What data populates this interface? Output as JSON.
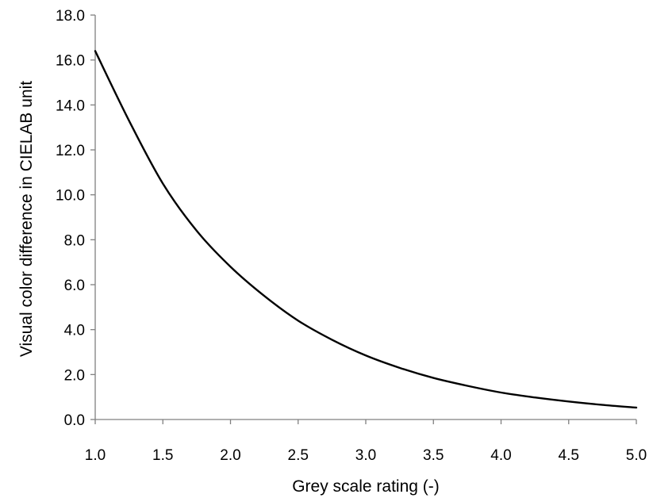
{
  "chart_data": {
    "type": "line",
    "title": "",
    "xlabel": "Grey scale rating (-)",
    "ylabel": "Visual color difference in CIELAB unit",
    "xlim": [
      1.0,
      5.0
    ],
    "ylim": [
      0.0,
      18.0
    ],
    "x_ticks": [
      "1.0",
      "1.5",
      "2.0",
      "2.5",
      "3.0",
      "3.5",
      "4.0",
      "4.5",
      "5.0"
    ],
    "y_ticks": [
      "0.0",
      "2.0",
      "4.0",
      "6.0",
      "8.0",
      "10.0",
      "12.0",
      "14.0",
      "16.0",
      "18.0"
    ],
    "x_tick_values": [
      1.0,
      1.5,
      2.0,
      2.5,
      3.0,
      3.5,
      4.0,
      4.5,
      5.0
    ],
    "y_tick_values": [
      0,
      2,
      4,
      6,
      8,
      10,
      12,
      14,
      16,
      18
    ],
    "grid": false,
    "legend": "none",
    "series": [
      {
        "color": "#000000",
        "x": [
          1.0,
          1.25,
          1.5,
          1.75,
          2.0,
          2.25,
          2.5,
          2.75,
          3.0,
          3.25,
          3.5,
          3.75,
          4.0,
          4.25,
          4.5,
          4.75,
          5.0
        ],
        "y": [
          16.4,
          13.3,
          10.5,
          8.4,
          6.8,
          5.5,
          4.4,
          3.55,
          2.85,
          2.3,
          1.85,
          1.5,
          1.2,
          0.98,
          0.8,
          0.65,
          0.53
        ]
      }
    ]
  }
}
